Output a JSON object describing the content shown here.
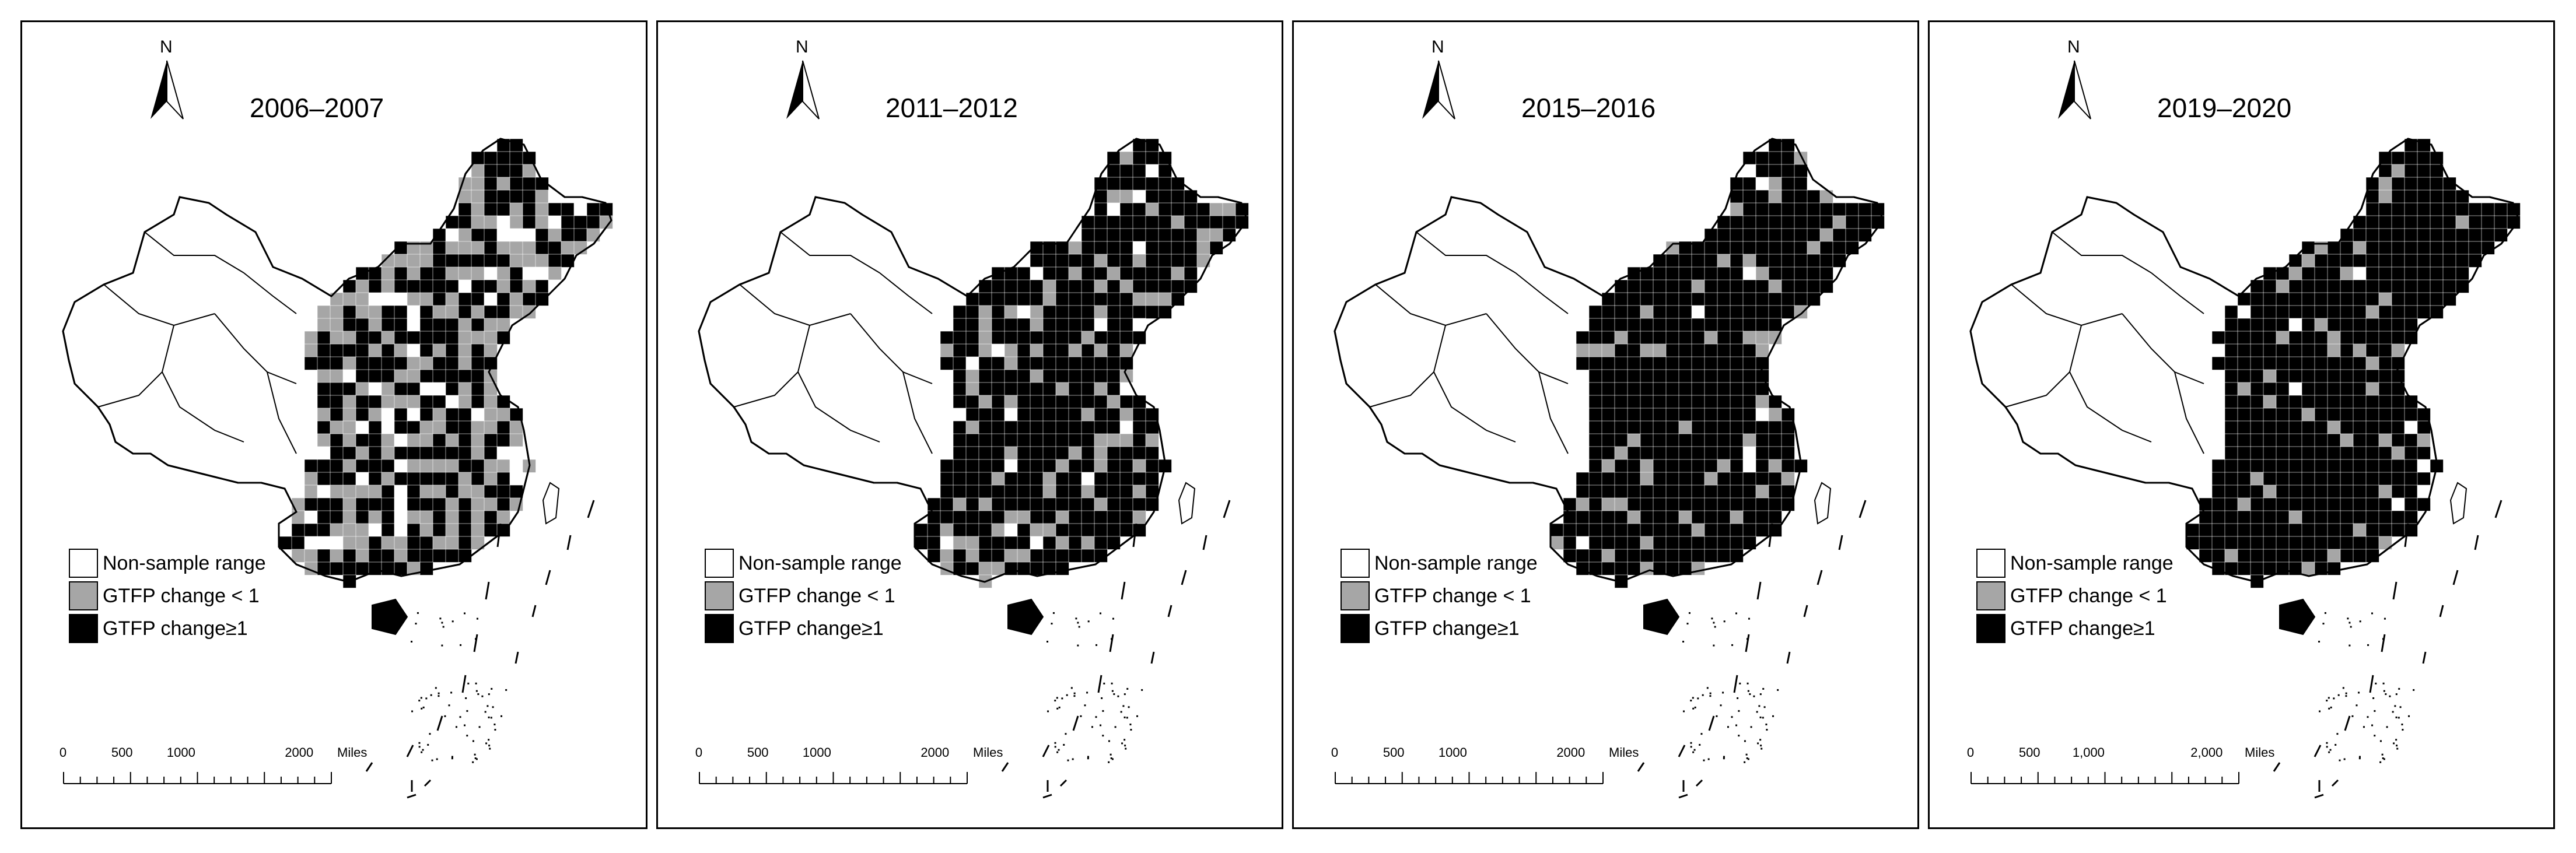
{
  "colors": {
    "non_sample": "#ffffff",
    "change_lt_1": "#a6a6a6",
    "change_ge_1": "#000000"
  },
  "legend": {
    "non_sample": "Non-sample range",
    "lt_1": "GTFP change < 1",
    "ge_1": "GTFP change≥1"
  },
  "north_label": "N",
  "panels": [
    {
      "year": "2006–2007",
      "scale_labels": [
        "0",
        "500",
        "1000",
        "2000"
      ],
      "scale_unit": "Miles",
      "share_ge_1": 0.55
    },
    {
      "year": "2011–2012",
      "scale_labels": [
        "0",
        "500",
        "1000",
        "2000"
      ],
      "scale_unit": "Miles",
      "share_ge_1": 0.75
    },
    {
      "year": "2015–2016",
      "scale_labels": [
        "0",
        "500",
        "1000",
        "2000"
      ],
      "scale_unit": "Miles",
      "share_ge_1": 0.88
    },
    {
      "year": "2019–2020",
      "scale_labels": [
        "0",
        "500",
        "1,000",
        "2,000"
      ],
      "scale_unit": "Miles",
      "share_ge_1": 0.9
    }
  ]
}
